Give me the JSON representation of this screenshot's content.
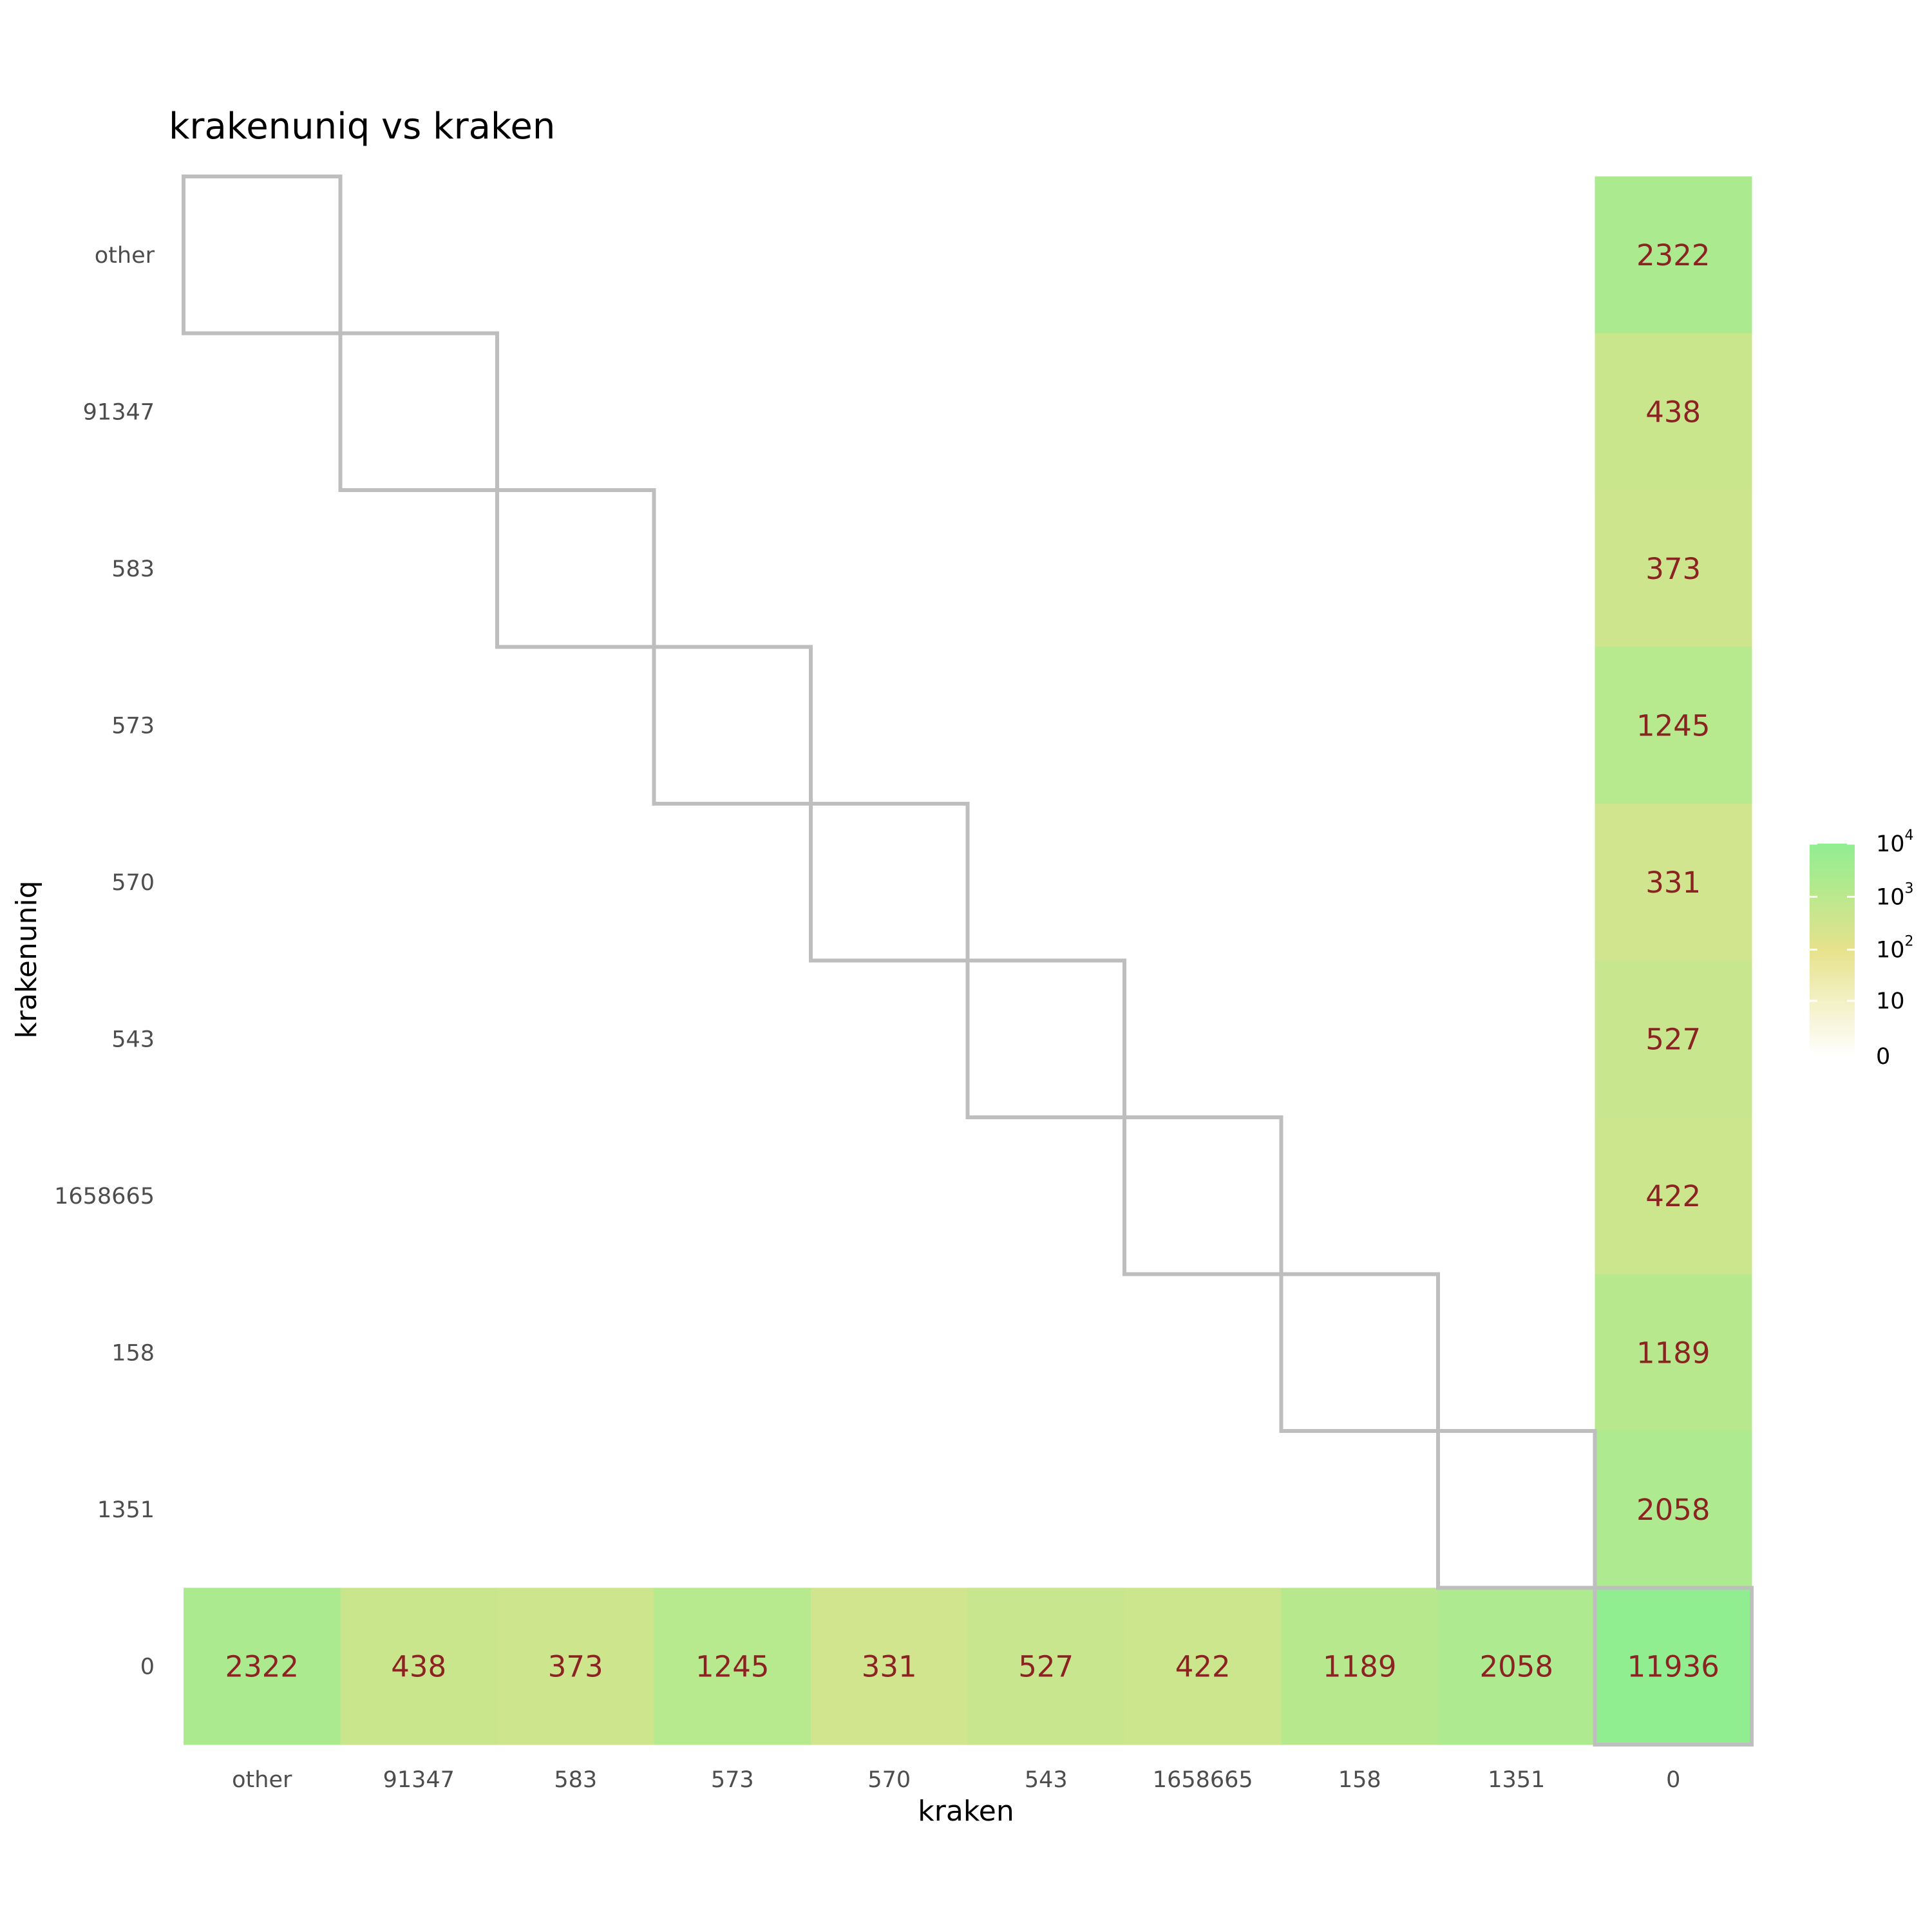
{
  "chart_data": {
    "type": "heatmap",
    "title": "krakenuniq vs kraken",
    "xlabel": "kraken",
    "ylabel": "krakenuniq",
    "x_categories": [
      "other",
      "91347",
      "583",
      "573",
      "570",
      "543",
      "1658665",
      "158",
      "1351",
      "0"
    ],
    "y_categories": [
      "other",
      "91347",
      "583",
      "573",
      "570",
      "543",
      "1658665",
      "158",
      "1351",
      "0"
    ],
    "cells": [
      {
        "x": "0",
        "y": "other",
        "value": 2322
      },
      {
        "x": "0",
        "y": "91347",
        "value": 438
      },
      {
        "x": "0",
        "y": "583",
        "value": 373
      },
      {
        "x": "0",
        "y": "573",
        "value": 1245
      },
      {
        "x": "0",
        "y": "570",
        "value": 331
      },
      {
        "x": "0",
        "y": "543",
        "value": 527
      },
      {
        "x": "0",
        "y": "1658665",
        "value": 422
      },
      {
        "x": "0",
        "y": "158",
        "value": 1189
      },
      {
        "x": "0",
        "y": "1351",
        "value": 2058
      },
      {
        "x": "other",
        "y": "0",
        "value": 2322
      },
      {
        "x": "91347",
        "y": "0",
        "value": 438
      },
      {
        "x": "583",
        "y": "0",
        "value": 373
      },
      {
        "x": "573",
        "y": "0",
        "value": 1245
      },
      {
        "x": "570",
        "y": "0",
        "value": 331
      },
      {
        "x": "543",
        "y": "0",
        "value": 527
      },
      {
        "x": "1658665",
        "y": "0",
        "value": 422
      },
      {
        "x": "158",
        "y": "0",
        "value": 1189
      },
      {
        "x": "1351",
        "y": "0",
        "value": 2058
      },
      {
        "x": "0",
        "y": "0",
        "value": 11936
      }
    ],
    "color_scale": "log",
    "color_range": [
      0,
      10000
    ],
    "colors": [
      "#ffffff",
      "#e6e28c",
      "#90ee90"
    ],
    "legend": {
      "position": "right",
      "labels": [
        {
          "base": "10",
          "exp": "4"
        },
        {
          "base": "10",
          "exp": "3"
        },
        {
          "base": "10",
          "exp": "2"
        },
        {
          "base": "10",
          "exp": ""
        },
        {
          "base": "0",
          "exp": ""
        }
      ]
    },
    "grid": false
  }
}
